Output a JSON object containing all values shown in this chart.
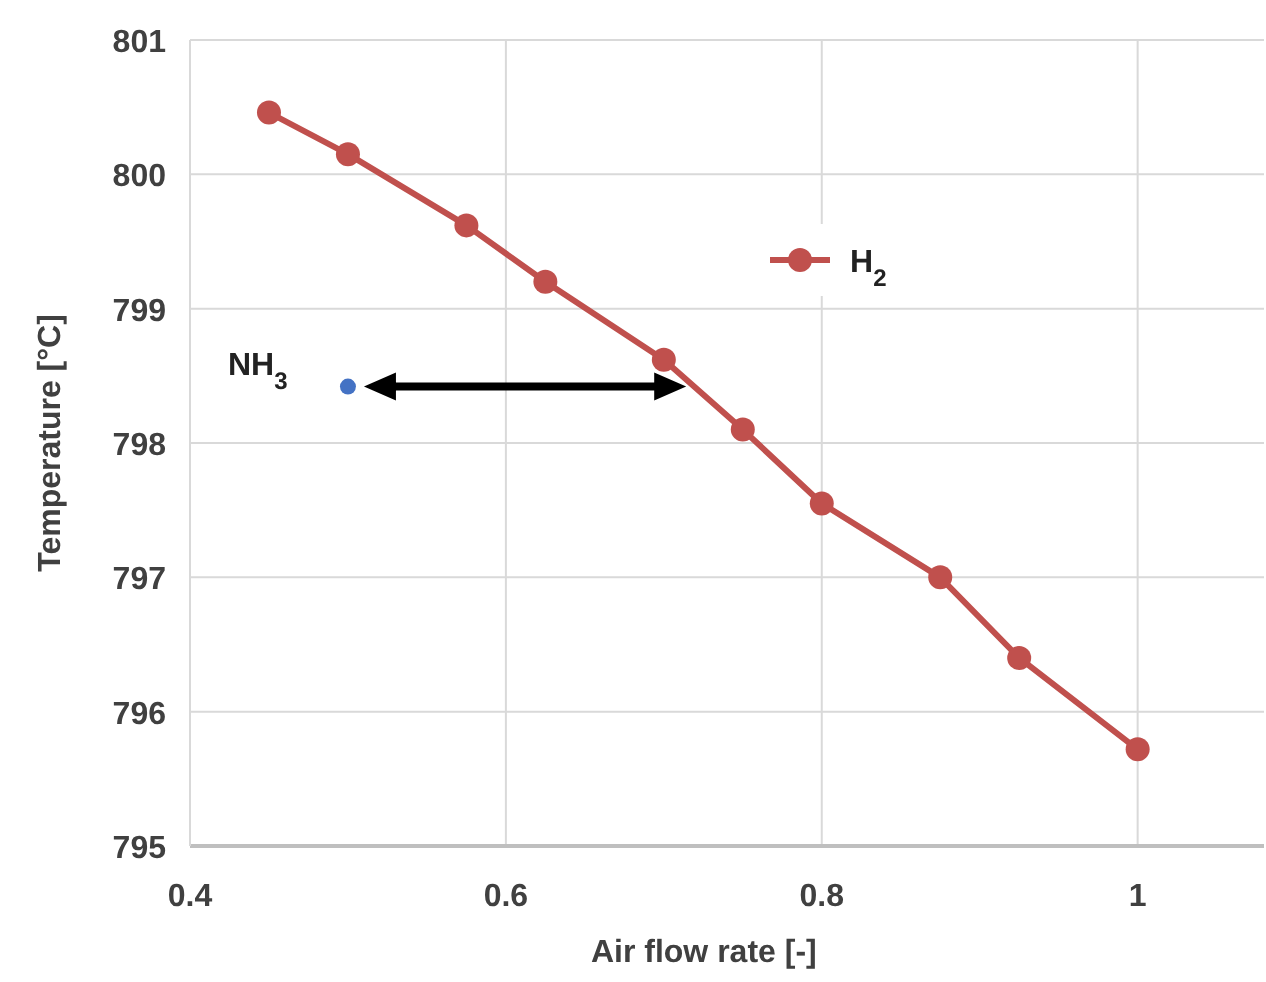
{
  "chart_data": {
    "type": "line",
    "xlabel": "Air flow rate [-]",
    "ylabel": "Temperature [°C]",
    "xlim": [
      0.4,
      1.08
    ],
    "xticks": [
      0.4,
      0.6,
      0.8,
      {
        "value": 1,
        "label": "1"
      }
    ],
    "ylim": [
      795,
      801
    ],
    "yticks": [
      795,
      796,
      797,
      798,
      799,
      800,
      801
    ],
    "grid": true,
    "legend": "top right",
    "marker": "circle",
    "series": [
      {
        "name": "H$_{2}$",
        "color": "#c0504d",
        "x": [
          0.45,
          0.5,
          0.575,
          0.625,
          0.7,
          0.75,
          0.8,
          0.875,
          0.925,
          1.0
        ],
        "values": [
          800.46,
          800.15,
          799.62,
          799.2,
          798.62,
          798.1,
          797.55,
          797.0,
          796.4,
          795.72
        ]
      },
      {
        "type": "scatter",
        "name": "NH$_{3}$",
        "color": "#4472c4",
        "x": [
          0.5
        ],
        "values": [
          798.42
        ]
      }
    ]
  }
}
